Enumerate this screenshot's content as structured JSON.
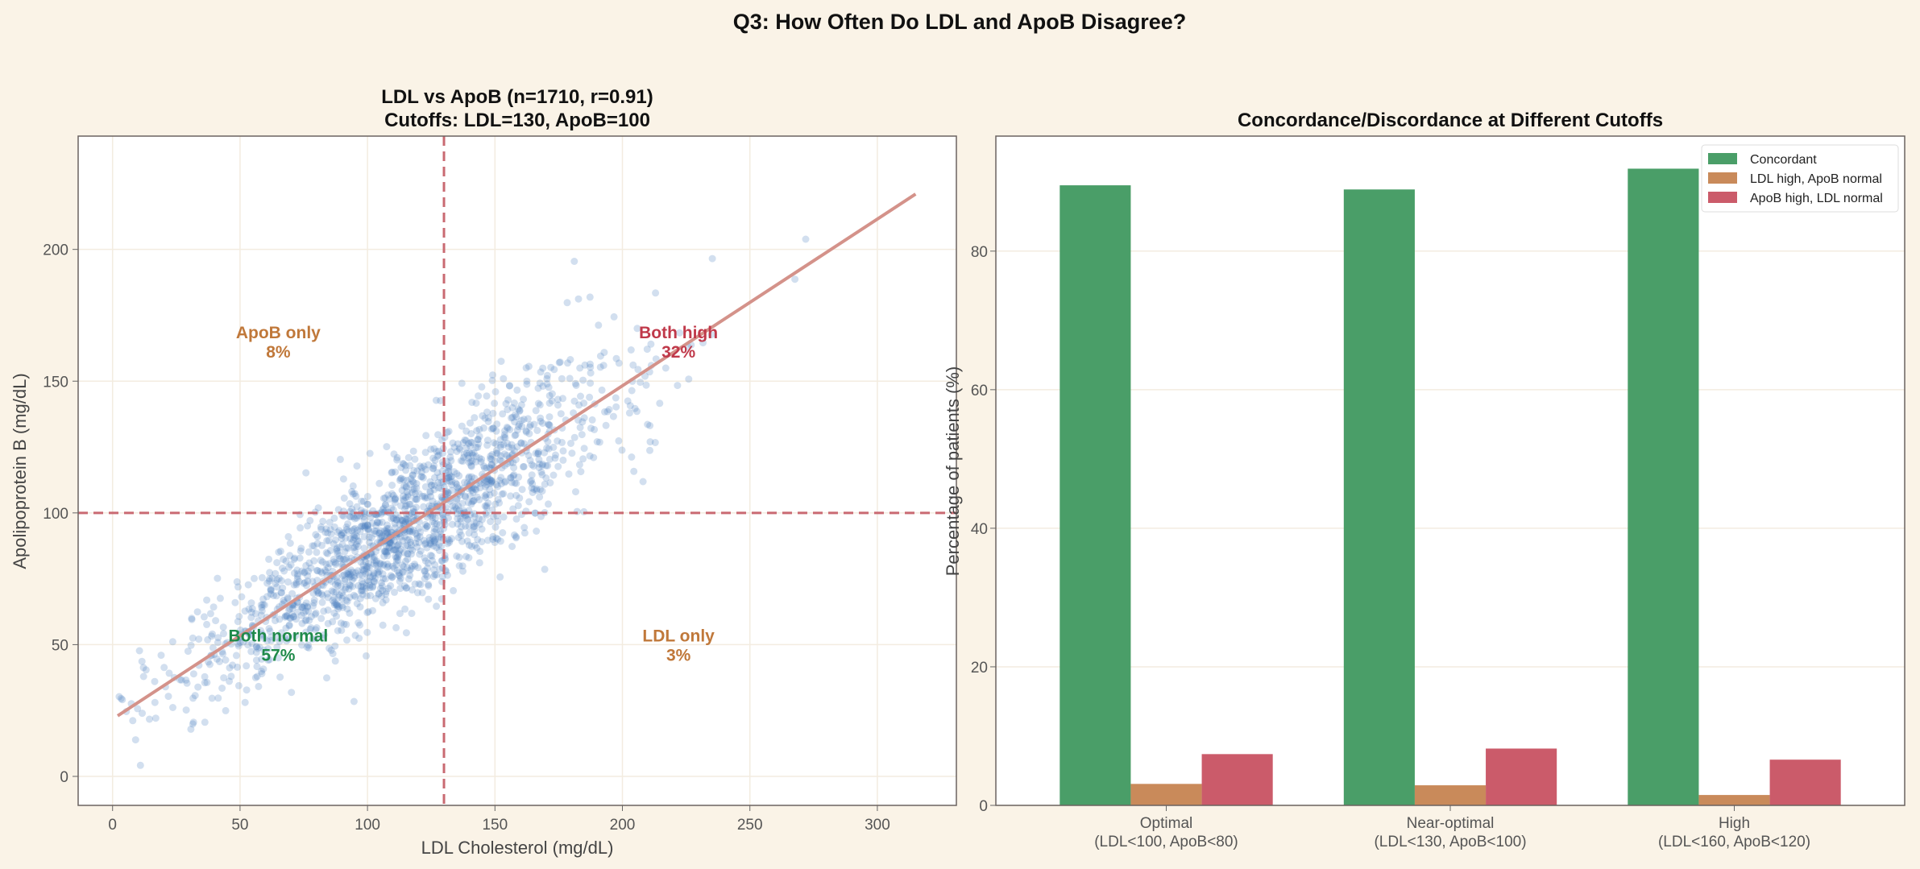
{
  "figure_title": "Q3: How Often Do LDL and ApoB Disagree?",
  "chart_data": [
    {
      "type": "scatter",
      "title_line1": "LDL vs ApoB (n=1710, r=0.91)",
      "title_line2": "Cutoffs: LDL=130, ApoB=100",
      "xlabel": "LDL Cholesterol (mg/dL)",
      "ylabel": "Apolipoprotein B (mg/dL)",
      "xlim": [
        -13.5,
        331
      ],
      "ylim": [
        -11,
        243
      ],
      "xticks": [
        0,
        50,
        100,
        150,
        200,
        250,
        300
      ],
      "yticks": [
        0,
        50,
        100,
        150,
        200
      ],
      "grid": true,
      "n": 1710,
      "r": 0.91,
      "cutoffs": {
        "ldl": 130,
        "apob": 100
      },
      "regression_line": [
        {
          "x": 2,
          "y": 23
        },
        {
          "x": 315,
          "y": 221
        }
      ],
      "point_distribution": {
        "ldl_mean": 115,
        "ldl_sd": 40,
        "residual_sd": 10
      },
      "point_color": "#4a7fc1",
      "line_color": "#d4928a",
      "cutoff_color": "#c96a72",
      "quadrants": [
        {
          "label": "ApoB only",
          "pct": "8%",
          "x": 65,
          "y": 165,
          "color": "#c0783a"
        },
        {
          "label": "Both high",
          "pct": "32%",
          "x": 222,
          "y": 165,
          "color": "#c0394a"
        },
        {
          "label": "Both normal",
          "pct": "57%",
          "x": 65,
          "y": 50,
          "color": "#1f8a4a"
        },
        {
          "label": "LDL only",
          "pct": "3%",
          "x": 222,
          "y": 50,
          "color": "#c0783a"
        }
      ]
    },
    {
      "type": "bar",
      "title": "Concordance/Discordance at Different Cutoffs",
      "ylabel": "Percentage of patients (%)",
      "ylim": [
        0,
        96.6
      ],
      "yticks": [
        0,
        20,
        40,
        60,
        80
      ],
      "grid": true,
      "legend_position": "top-right",
      "categories": [
        {
          "line1": "Optimal",
          "line2": "(LDL<100, ApoB<80)"
        },
        {
          "line1": "Near-optimal",
          "line2": "(LDL<130, ApoB<100)"
        },
        {
          "line1": "High",
          "line2": "(LDL<160, ApoB<120)"
        }
      ],
      "series": [
        {
          "name": "Concordant",
          "color": "#4a9e68",
          "values": [
            89.5,
            88.9,
            91.9
          ]
        },
        {
          "name": "LDL high, ApoB normal",
          "color": "#c98a5a",
          "values": [
            3.1,
            2.9,
            1.5
          ]
        },
        {
          "name": "ApoB high, LDL normal",
          "color": "#cb5b6a",
          "values": [
            7.4,
            8.2,
            6.6
          ]
        }
      ]
    }
  ]
}
